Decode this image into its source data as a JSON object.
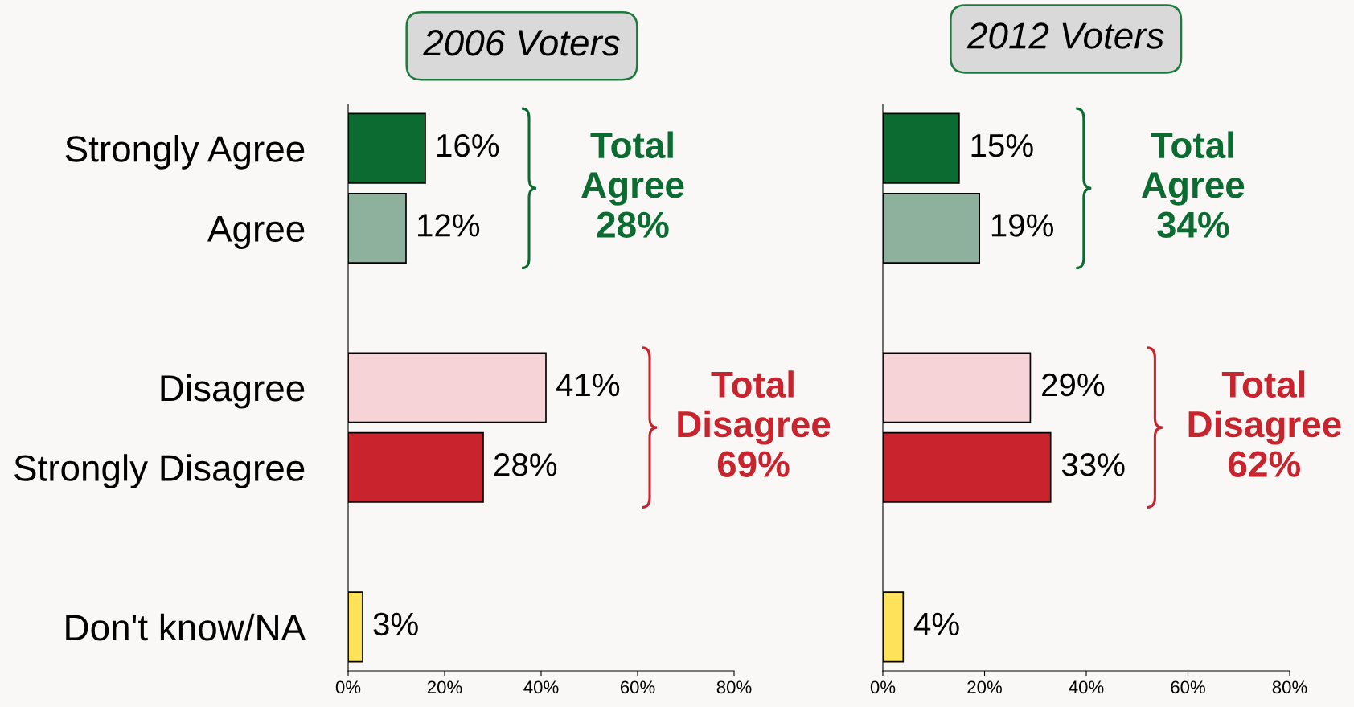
{
  "chart_data": [
    {
      "type": "bar",
      "orientation": "horizontal",
      "title": "2006 Voters",
      "categories": [
        "Strongly Agree",
        "Agree",
        null,
        "Disagree",
        "Strongly Disagree",
        null,
        "Don't know/NA"
      ],
      "values": [
        16,
        12,
        null,
        41,
        28,
        null,
        3
      ],
      "value_labels": [
        "16%",
        "12%",
        null,
        "41%",
        "28%",
        null,
        "3%"
      ],
      "colors": [
        "#0b6b30",
        "#8db19d",
        null,
        "#f5d3d6",
        "#c9242d",
        null,
        "#fde25a"
      ],
      "xlim": [
        0,
        80
      ],
      "xticks": [
        {
          "value": 0,
          "label": "0%"
        },
        {
          "value": 20,
          "label": "20%"
        },
        {
          "value": 40,
          "label": "40%"
        },
        {
          "value": 60,
          "label": "60%"
        },
        {
          "value": 80,
          "label": "80%"
        }
      ],
      "annotations": [
        "Total\nAgree\n28%",
        "Total\nDisagree\n69%"
      ]
    },
    {
      "type": "bar",
      "orientation": "horizontal",
      "title": "2012 Voters",
      "categories": [
        null,
        null,
        null,
        null,
        null,
        null,
        null
      ],
      "values": [
        15,
        19,
        null,
        29,
        33,
        null,
        4
      ],
      "value_labels": [
        "15%",
        "19%",
        null,
        "29%",
        "33%",
        null,
        "4%"
      ],
      "colors": [
        "#0b6b30",
        "#8db19d",
        null,
        "#f5d3d6",
        "#c9242d",
        null,
        "#fde25a"
      ],
      "xlim": [
        0,
        80
      ],
      "xticks": [
        {
          "value": 0,
          "label": "0%"
        },
        {
          "value": 20,
          "label": "20%"
        },
        {
          "value": 40,
          "label": "40%"
        },
        {
          "value": 60,
          "label": "60%"
        },
        {
          "value": 80,
          "label": "80%"
        }
      ],
      "tick_labels": "x",
      "annotations": [
        "Total\nAgree\n34%",
        "Total\nDisagree\n62%"
      ]
    }
  ]
}
